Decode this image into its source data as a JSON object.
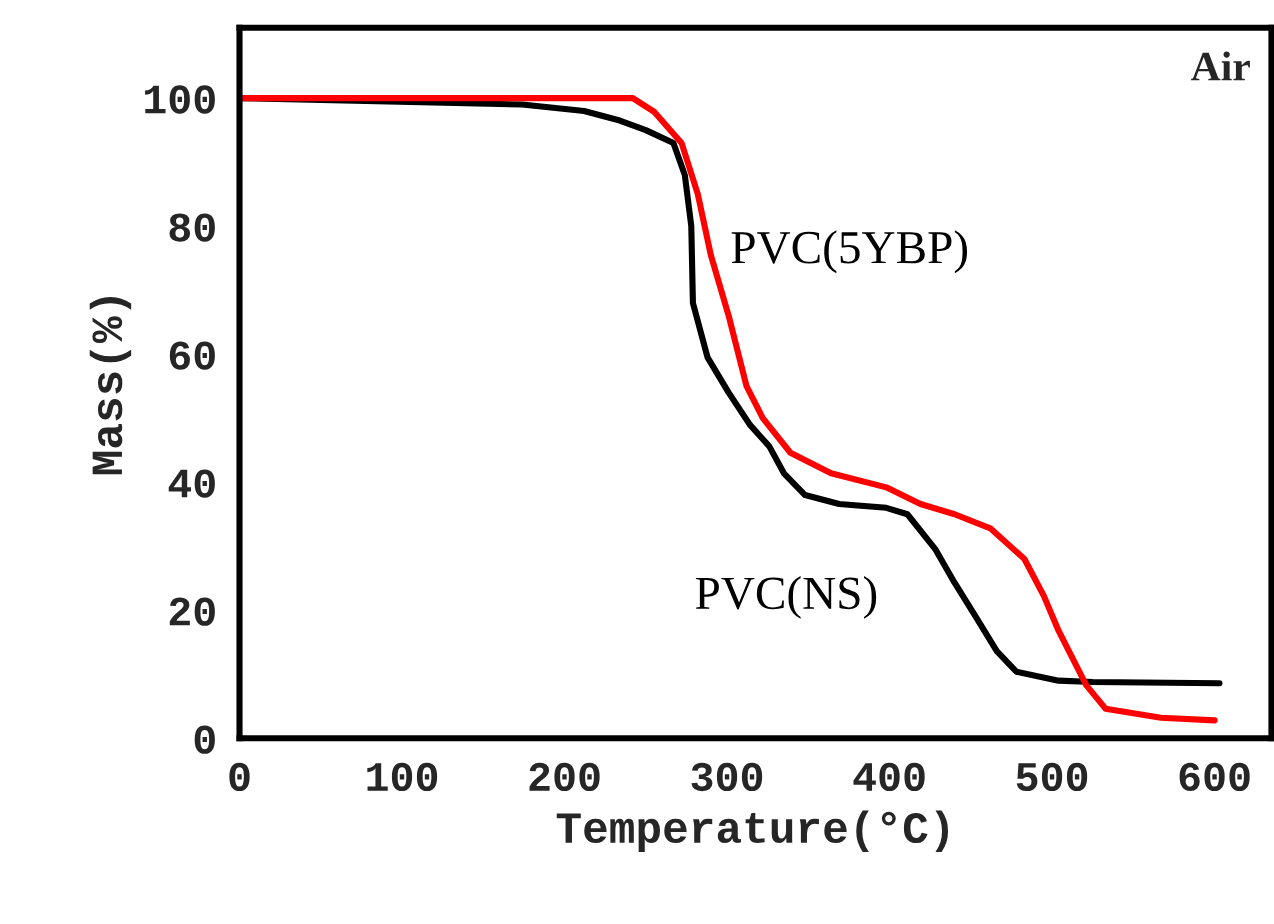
{
  "chart_data": {
    "type": "line",
    "xlabel": "Temperature(°C)",
    "ylabel": "Mass(%)",
    "xlim": [
      0,
      635
    ],
    "ylim": [
      0,
      111
    ],
    "xticks": [
      0,
      100,
      200,
      300,
      400,
      500,
      600
    ],
    "yticks": [
      0,
      20,
      40,
      60,
      80,
      100
    ],
    "grid": false,
    "legend": false,
    "marker": "none",
    "line_style": "solid",
    "annotations": [
      "Air"
    ],
    "series": [
      {
        "name": "PVC(NS)",
        "color": "#000000",
        "x": [
          0,
          174,
          212,
          234,
          250,
          267,
          274,
          278,
          279,
          288,
          301,
          314,
          326,
          335,
          348,
          369,
          398,
          411,
          428,
          440,
          453,
          466,
          478,
          504,
          525,
          603
        ],
        "values": [
          100,
          99,
          98,
          96.5,
          95,
          93,
          88,
          80,
          68,
          59.5,
          54,
          49,
          45.6,
          41.4,
          38,
          36.6,
          36,
          35,
          29.6,
          24.3,
          19,
          13.6,
          10.4,
          9,
          8.8,
          8.6
        ]
      },
      {
        "name": "PVC(5YBP)",
        "color": "#ff0000",
        "x": [
          0,
          242,
          255,
          272,
          282,
          290,
          301,
          312,
          322,
          339,
          364,
          398,
          419,
          440,
          462,
          483,
          495,
          504,
          521,
          533,
          567,
          600
        ],
        "values": [
          100,
          100,
          97.9,
          93,
          85,
          75.5,
          66,
          55,
          50,
          44.6,
          41.4,
          39.2,
          36.6,
          35,
          32.8,
          28,
          22.2,
          16.8,
          8.3,
          4.6,
          3.2,
          2.8
        ]
      }
    ]
  }
}
